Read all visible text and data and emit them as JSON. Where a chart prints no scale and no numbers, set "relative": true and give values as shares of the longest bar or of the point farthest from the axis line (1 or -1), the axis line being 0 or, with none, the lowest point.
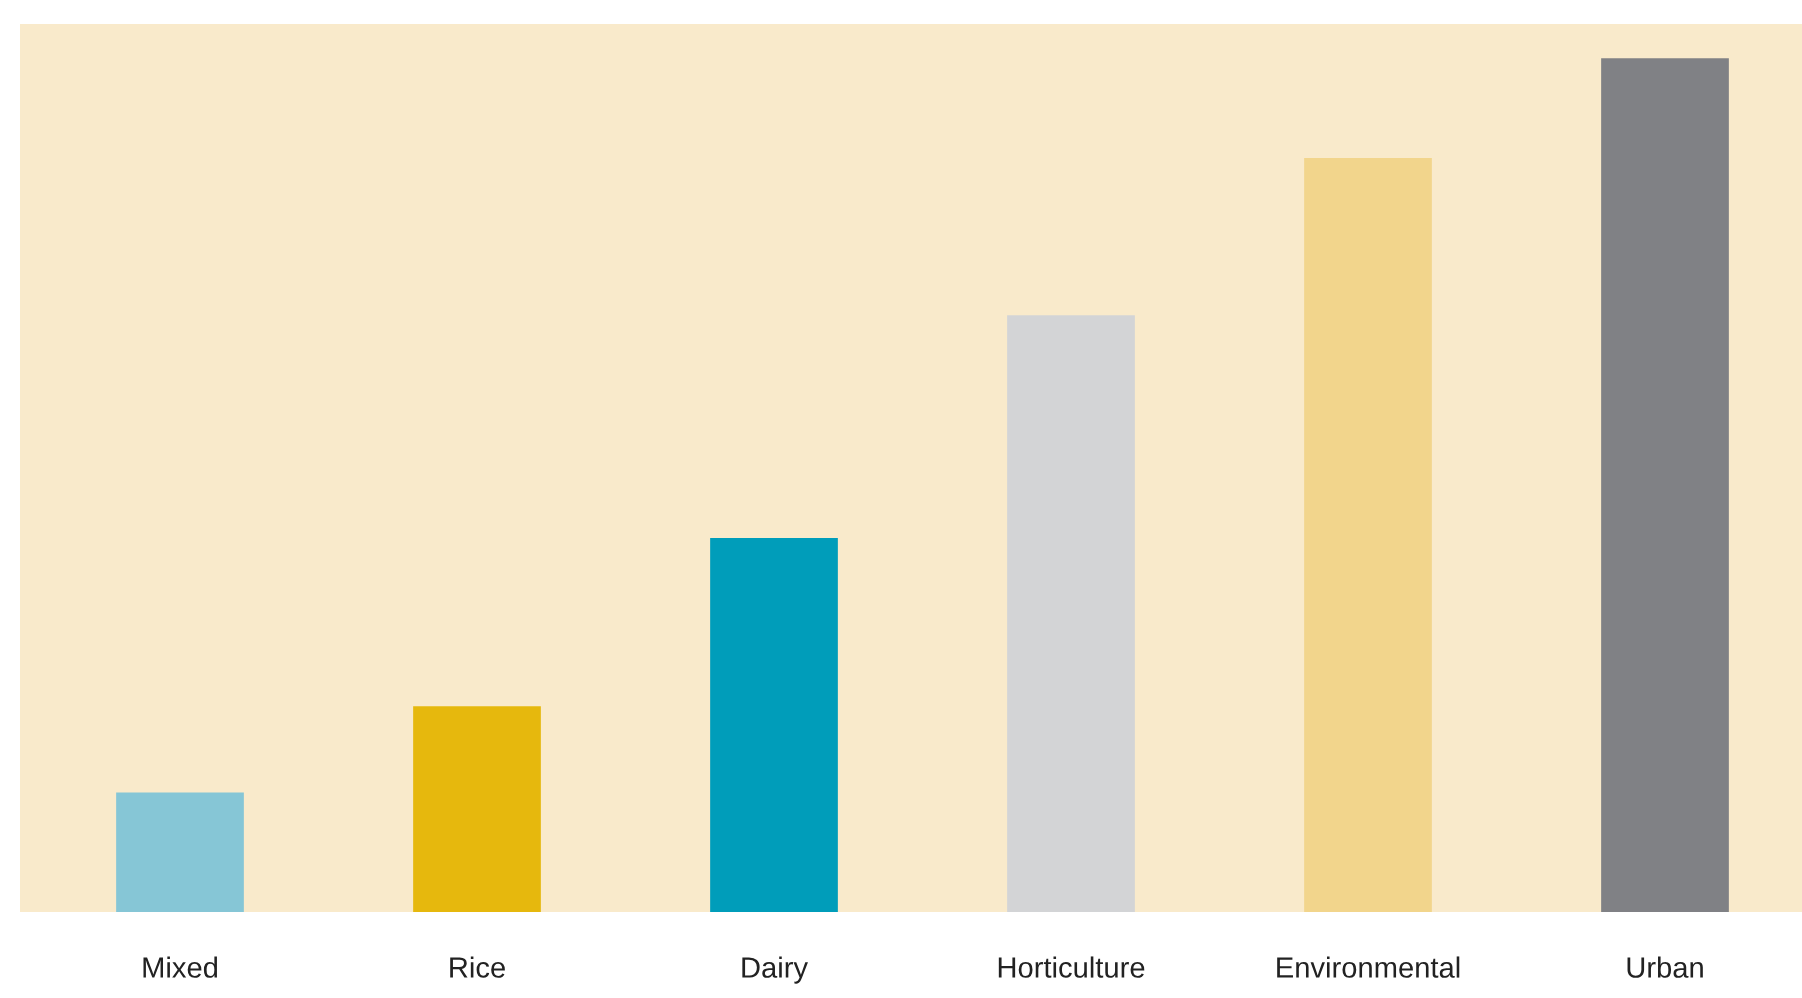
{
  "chart_data": {
    "type": "bar",
    "relative": true,
    "categories": [
      "Mixed",
      "Rice",
      "Dairy",
      "Horticulture",
      "Environmental",
      "Urban"
    ],
    "values": [
      0.14,
      0.241,
      0.438,
      0.699,
      0.883,
      1
    ],
    "colors": [
      "#86c6d6",
      "#e6b80d",
      "#009dba",
      "#d3d4d6",
      "#f2d58c",
      "#808185"
    ]
  }
}
